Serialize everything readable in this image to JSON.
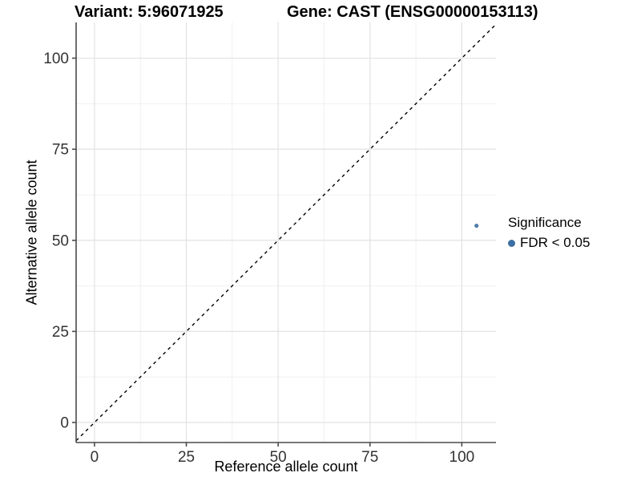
{
  "chart_data": {
    "type": "scatter",
    "titles": [
      "Variant: 5:96071925",
      "Gene: CAST (ENSG00000153113)"
    ],
    "xlabel": "Reference allele count",
    "ylabel": "Alternative allele count",
    "x_ticks": [
      0,
      25,
      50,
      75,
      100
    ],
    "y_ticks": [
      0,
      25,
      50,
      75,
      100
    ],
    "x_minor_gridlines": [
      12.5,
      37.5,
      62.5,
      87.5
    ],
    "y_minor_gridlines": [
      12.5,
      37.5,
      62.5,
      87.5
    ],
    "x_range": [
      -5.0,
      109.3
    ],
    "y_range": [
      -5.5,
      109.8
    ],
    "grid": true,
    "legend_position": "right",
    "points": [
      {
        "x": 104,
        "y": 54,
        "series": "FDR < 0.05"
      }
    ],
    "reference_line": {
      "kind": "identity",
      "style": "dashed",
      "color": "#000000"
    },
    "legend": {
      "title": "Significance",
      "items": [
        {
          "label": "FDR < 0.05",
          "color": "#3C6FA3"
        }
      ]
    },
    "colors": {
      "point": "#4E7DAB",
      "axis": "#4A4A4A",
      "grid_major": "#E2E2E2",
      "grid_minor": "#F0F0F0",
      "tick_text": "#333333"
    }
  }
}
